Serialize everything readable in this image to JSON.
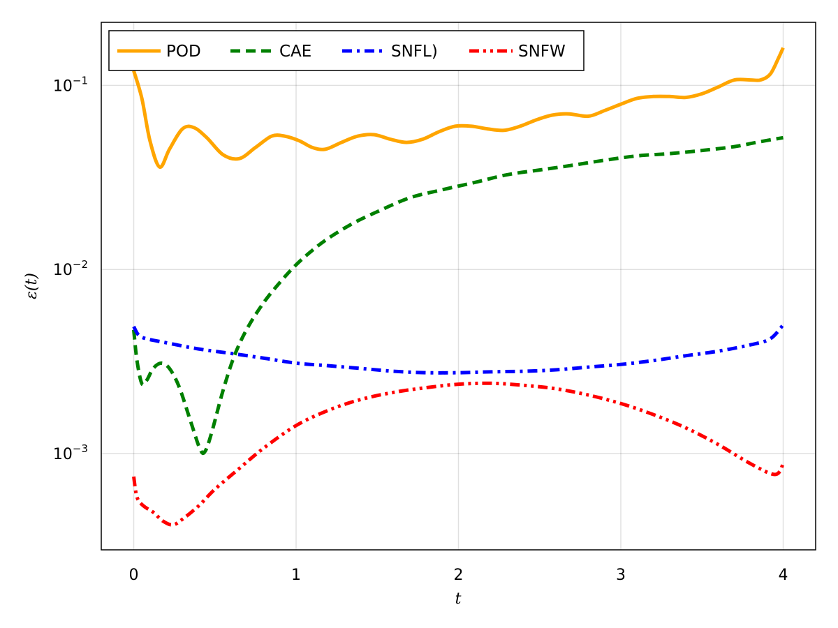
{
  "chart_data": {
    "type": "line",
    "title": "",
    "xlabel": "t",
    "ylabel": "ε(t)",
    "xlim": [
      -0.2,
      4.2
    ],
    "ylim": [
      0.0003,
      0.22
    ],
    "yscale": "log",
    "grid": true,
    "legend_position": "top-left",
    "x_ticks": [
      {
        "value": 0,
        "label": "0"
      },
      {
        "value": 1,
        "label": "1"
      },
      {
        "value": 2,
        "label": "2"
      },
      {
        "value": 3,
        "label": "3"
      },
      {
        "value": 4,
        "label": "4"
      }
    ],
    "y_ticks": [
      {
        "value": 0.001,
        "base": "10",
        "exp": "−3"
      },
      {
        "value": 0.01,
        "base": "10",
        "exp": "−2"
      },
      {
        "value": 0.1,
        "base": "10",
        "exp": "−1"
      }
    ],
    "series": [
      {
        "name": "POD",
        "color": "#FFA500",
        "dash": "solid",
        "points": [
          [
            0,
            0.12
          ],
          [
            0.05,
            0.085
          ],
          [
            0.1,
            0.05
          ],
          [
            0.16,
            0.036
          ],
          [
            0.22,
            0.045
          ],
          [
            0.3,
            0.058
          ],
          [
            0.37,
            0.059
          ],
          [
            0.45,
            0.052
          ],
          [
            0.55,
            0.042
          ],
          [
            0.65,
            0.04
          ],
          [
            0.75,
            0.046
          ],
          [
            0.85,
            0.053
          ],
          [
            0.93,
            0.053
          ],
          [
            1.02,
            0.05
          ],
          [
            1.1,
            0.046
          ],
          [
            1.18,
            0.045
          ],
          [
            1.28,
            0.049
          ],
          [
            1.38,
            0.053
          ],
          [
            1.48,
            0.054
          ],
          [
            1.58,
            0.051
          ],
          [
            1.68,
            0.049
          ],
          [
            1.78,
            0.051
          ],
          [
            1.88,
            0.056
          ],
          [
            1.98,
            0.06
          ],
          [
            2.08,
            0.06
          ],
          [
            2.18,
            0.058
          ],
          [
            2.28,
            0.057
          ],
          [
            2.38,
            0.06
          ],
          [
            2.48,
            0.065
          ],
          [
            2.58,
            0.069
          ],
          [
            2.68,
            0.07
          ],
          [
            2.8,
            0.068
          ],
          [
            2.9,
            0.073
          ],
          [
            3.0,
            0.079
          ],
          [
            3.1,
            0.085
          ],
          [
            3.2,
            0.087
          ],
          [
            3.3,
            0.087
          ],
          [
            3.4,
            0.086
          ],
          [
            3.5,
            0.09
          ],
          [
            3.6,
            0.098
          ],
          [
            3.7,
            0.107
          ],
          [
            3.8,
            0.107
          ],
          [
            3.86,
            0.107
          ],
          [
            3.92,
            0.115
          ],
          [
            3.97,
            0.14
          ],
          [
            4.0,
            0.16
          ]
        ]
      },
      {
        "name": "CAE",
        "color": "#008000",
        "dash": "dashed",
        "points": [
          [
            0,
            0.0047
          ],
          [
            0.02,
            0.0032
          ],
          [
            0.05,
            0.0024
          ],
          [
            0.08,
            0.0025
          ],
          [
            0.12,
            0.0029
          ],
          [
            0.17,
            0.0031
          ],
          [
            0.22,
            0.0029
          ],
          [
            0.28,
            0.0023
          ],
          [
            0.35,
            0.0015
          ],
          [
            0.41,
            0.00105
          ],
          [
            0.44,
            0.00103
          ],
          [
            0.48,
            0.0013
          ],
          [
            0.55,
            0.0022
          ],
          [
            0.62,
            0.0034
          ],
          [
            0.7,
            0.0048
          ],
          [
            0.8,
            0.0066
          ],
          [
            0.9,
            0.0085
          ],
          [
            1.0,
            0.0106
          ],
          [
            1.1,
            0.0127
          ],
          [
            1.2,
            0.0148
          ],
          [
            1.35,
            0.0178
          ],
          [
            1.5,
            0.0206
          ],
          [
            1.7,
            0.0245
          ],
          [
            1.9,
            0.0271
          ],
          [
            2.1,
            0.0297
          ],
          [
            2.3,
            0.0327
          ],
          [
            2.5,
            0.0347
          ],
          [
            2.7,
            0.0368
          ],
          [
            2.9,
            0.0392
          ],
          [
            3.1,
            0.0414
          ],
          [
            3.3,
            0.0426
          ],
          [
            3.5,
            0.0443
          ],
          [
            3.7,
            0.0465
          ],
          [
            3.85,
            0.0493
          ],
          [
            4.0,
            0.052
          ]
        ]
      },
      {
        "name": "SNFL)",
        "color": "#0000FF",
        "dash": "dashdot",
        "points": [
          [
            0,
            0.0049
          ],
          [
            0.03,
            0.0044
          ],
          [
            0.08,
            0.0042
          ],
          [
            0.2,
            0.004
          ],
          [
            0.4,
            0.0037
          ],
          [
            0.6,
            0.0035
          ],
          [
            0.8,
            0.0033
          ],
          [
            1.0,
            0.0031
          ],
          [
            1.2,
            0.003
          ],
          [
            1.4,
            0.0029
          ],
          [
            1.6,
            0.0028
          ],
          [
            1.8,
            0.00275
          ],
          [
            2.0,
            0.00275
          ],
          [
            2.2,
            0.00278
          ],
          [
            2.4,
            0.0028
          ],
          [
            2.6,
            0.00285
          ],
          [
            2.8,
            0.00295
          ],
          [
            3.0,
            0.00305
          ],
          [
            3.2,
            0.0032
          ],
          [
            3.4,
            0.0034
          ],
          [
            3.6,
            0.0036
          ],
          [
            3.8,
            0.0039
          ],
          [
            3.92,
            0.0042
          ],
          [
            4.0,
            0.005
          ]
        ]
      },
      {
        "name": "SNFW",
        "color": "#FF0000",
        "dash": "dashdotdot",
        "points": [
          [
            0,
            0.00075
          ],
          [
            0.02,
            0.00058
          ],
          [
            0.06,
            0.00052
          ],
          [
            0.12,
            0.00048
          ],
          [
            0.18,
            0.00043
          ],
          [
            0.24,
            0.00041
          ],
          [
            0.3,
            0.00044
          ],
          [
            0.4,
            0.00052
          ],
          [
            0.5,
            0.00064
          ],
          [
            0.65,
            0.00083
          ],
          [
            0.8,
            0.00107
          ],
          [
            1.0,
            0.00142
          ],
          [
            1.2,
            0.00172
          ],
          [
            1.4,
            0.00197
          ],
          [
            1.6,
            0.00215
          ],
          [
            1.8,
            0.00228
          ],
          [
            2.0,
            0.00238
          ],
          [
            2.2,
            0.00241
          ],
          [
            2.4,
            0.00235
          ],
          [
            2.6,
            0.00225
          ],
          [
            2.8,
            0.00208
          ],
          [
            3.0,
            0.00187
          ],
          [
            3.2,
            0.00163
          ],
          [
            3.4,
            0.00138
          ],
          [
            3.6,
            0.00112
          ],
          [
            3.8,
            0.00088
          ],
          [
            3.95,
            0.00077
          ],
          [
            4.0,
            0.00088
          ]
        ]
      }
    ]
  }
}
